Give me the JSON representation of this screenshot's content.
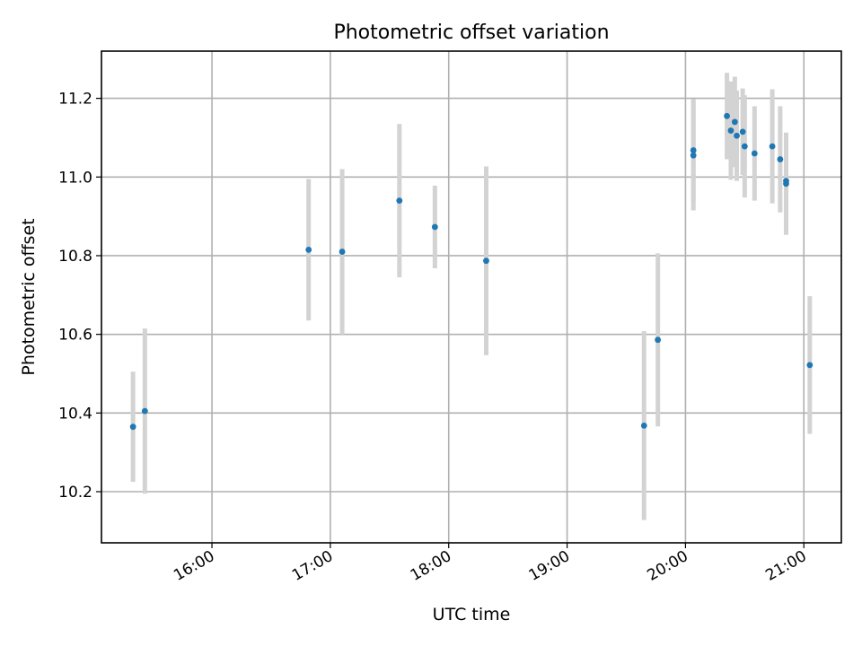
{
  "chart_data": {
    "type": "scatter",
    "title": "Photometric offset variation",
    "xlabel": "UTC time",
    "ylabel": "Photometric offset",
    "xlim": [
      "15:04",
      "21:19"
    ],
    "ylim": [
      10.07,
      11.32
    ],
    "x_ticks": [
      "16:00",
      "17:00",
      "18:00",
      "19:00",
      "20:00",
      "21:00"
    ],
    "y_ticks": [
      "10.2",
      "10.4",
      "10.6",
      "10.8",
      "11.0",
      "11.2"
    ],
    "grid": true,
    "legend": "none",
    "colors": {
      "marker": "#1f77b4",
      "error_bar": "#d3d3d3",
      "grid": "#b0b0b0"
    },
    "series": [
      {
        "points": [
          {
            "x": "15:20",
            "y": 10.365,
            "err": 0.14
          },
          {
            "x": "15:26",
            "y": 10.405,
            "err": 0.21
          },
          {
            "x": "16:49",
            "y": 10.815,
            "err": 0.18
          },
          {
            "x": "17:06",
            "y": 10.81,
            "err": 0.21
          },
          {
            "x": "17:35",
            "y": 10.94,
            "err": 0.195
          },
          {
            "x": "17:53",
            "y": 10.873,
            "err": 0.105
          },
          {
            "x": "18:19",
            "y": 10.787,
            "err": 0.24
          },
          {
            "x": "19:39",
            "y": 10.368,
            "err": 0.24
          },
          {
            "x": "19:46",
            "y": 10.586,
            "err": 0.22
          },
          {
            "x": "20:04",
            "y": 11.055,
            "err": 0.14
          },
          {
            "x": "20:04",
            "y": 11.068,
            "err": 0.13
          },
          {
            "x": "20:21",
            "y": 11.155,
            "err": 0.11
          },
          {
            "x": "20:23",
            "y": 11.118,
            "err": 0.125
          },
          {
            "x": "20:25",
            "y": 11.14,
            "err": 0.115
          },
          {
            "x": "20:26",
            "y": 11.105,
            "err": 0.115
          },
          {
            "x": "20:29",
            "y": 11.115,
            "err": 0.11
          },
          {
            "x": "20:30",
            "y": 11.078,
            "err": 0.13
          },
          {
            "x": "20:35",
            "y": 11.06,
            "err": 0.12
          },
          {
            "x": "20:44",
            "y": 11.078,
            "err": 0.145
          },
          {
            "x": "20:48",
            "y": 11.045,
            "err": 0.135
          },
          {
            "x": "20:51",
            "y": 10.99,
            "err": 0.12
          },
          {
            "x": "20:51",
            "y": 10.983,
            "err": 0.13
          },
          {
            "x": "21:03",
            "y": 10.522,
            "err": 0.175
          }
        ]
      }
    ]
  }
}
